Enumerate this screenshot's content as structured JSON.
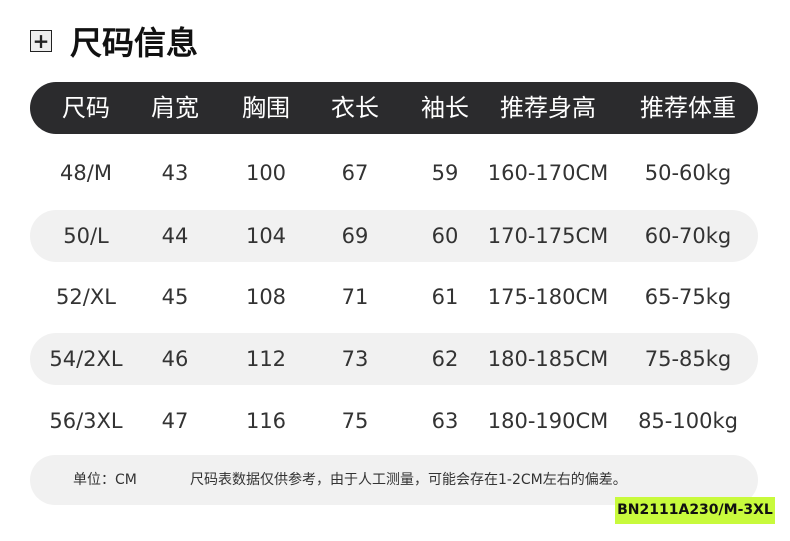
{
  "title": "尺码信息",
  "icon": "plus-box-icon",
  "headers": [
    "尺码",
    "肩宽",
    "胸围",
    "衣长",
    "袖长",
    "推荐身高",
    "推荐体重"
  ],
  "rows": [
    [
      "48/M",
      "43",
      "100",
      "67",
      "59",
      "160-170CM",
      "50-60kg"
    ],
    [
      "50/L",
      "44",
      "104",
      "69",
      "60",
      "170-175CM",
      "60-70kg"
    ],
    [
      "52/XL",
      "45",
      "108",
      "71",
      "61",
      "175-180CM",
      "65-75kg"
    ],
    [
      "54/2XL",
      "46",
      "112",
      "73",
      "62",
      "180-185CM",
      "75-85kg"
    ],
    [
      "56/3XL",
      "47",
      "116",
      "75",
      "63",
      "180-190CM",
      "85-100kg"
    ]
  ],
  "footer": {
    "unit": "单位：CM",
    "note": "尺码表数据仅供参考，由于人工测量，可能会存在1-2CM左右的偏差。"
  },
  "badge": "BN2111A230/M-3XL",
  "colors": {
    "header_bg": "#2b2b2d",
    "stripe": "#f1f1f1",
    "badge": "#c8fa3c"
  }
}
